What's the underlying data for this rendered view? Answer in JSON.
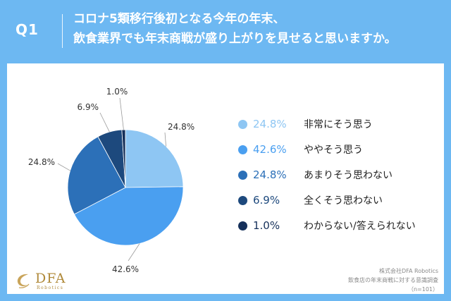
{
  "header": {
    "qnum": "Q1",
    "line1": "コロナ5類移行後初となる今年の年末、",
    "line2": "飲食業界でも年末商戦が盛り上がりを見せると思いますか。"
  },
  "chart_data": {
    "type": "pie",
    "slices": [
      {
        "label": "非常にそう思う",
        "value": 24.8,
        "pct_text": "24.8%",
        "color": "#8ec6f3"
      },
      {
        "label": "ややそう思う",
        "value": 42.6,
        "pct_text": "42.6%",
        "color": "#4a9ff0"
      },
      {
        "label": "あまりそう思わない",
        "value": 24.8,
        "pct_text": "24.8%",
        "color": "#2c70b8"
      },
      {
        "label": "全くそう思わない",
        "value": 6.9,
        "pct_text": "6.9%",
        "color": "#1d497d"
      },
      {
        "label": "わからない/答えられない",
        "value": 1.0,
        "pct_text": "1.0%",
        "color": "#15305a"
      }
    ],
    "legend_position": "right"
  },
  "logo": {
    "name": "DFA",
    "sub": "Robotics"
  },
  "source": {
    "line1": "株式会社DFA Robotics",
    "line2": "飲食店の年末商戦に対する意識調査",
    "line3": "（n=101）"
  }
}
